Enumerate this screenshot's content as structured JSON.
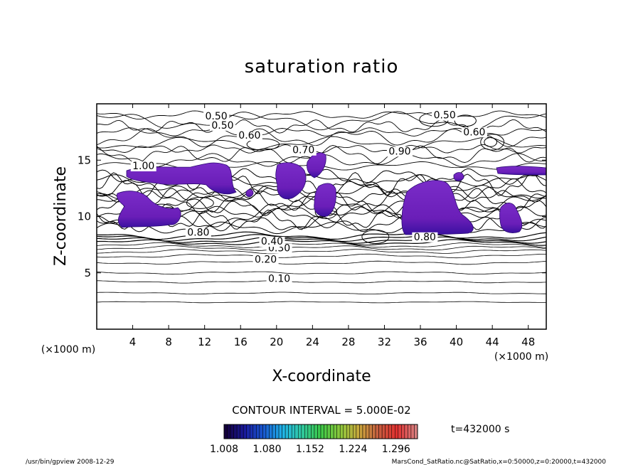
{
  "chart_data": {
    "type": "heatmap",
    "title": "saturation ratio",
    "xlabel": "X-coordinate",
    "ylabel": "Z-coordinate",
    "x_unit": "(×1000 m)",
    "y_unit": "(×1000 m)",
    "xlim": [
      0,
      50
    ],
    "ylim": [
      0,
      20
    ],
    "x_ticks": [
      4,
      8,
      12,
      16,
      20,
      24,
      28,
      32,
      36,
      40,
      44,
      48
    ],
    "y_ticks": [
      5,
      10,
      15
    ],
    "contour_interval_text": "CONTOUR INTERVAL = 5.000E-02",
    "contour_labels": [
      {
        "text": "0.10",
        "x": 20.3,
        "z": 4.2
      },
      {
        "text": "0.20",
        "x": 18.8,
        "z": 5.9
      },
      {
        "text": "0.30",
        "x": 20.3,
        "z": 6.9
      },
      {
        "text": "0.40",
        "x": 19.5,
        "z": 7.5
      },
      {
        "text": "0.50",
        "x": 13.3,
        "z": 18.6
      },
      {
        "text": "0.50",
        "x": 14.0,
        "z": 17.8
      },
      {
        "text": "0.50",
        "x": 38.7,
        "z": 18.7
      },
      {
        "text": "0.60",
        "x": 17.0,
        "z": 16.9
      },
      {
        "text": "0.60",
        "x": 42.0,
        "z": 17.2
      },
      {
        "text": "0.70",
        "x": 23.0,
        "z": 15.6
      },
      {
        "text": "0.80",
        "x": 11.3,
        "z": 8.3
      },
      {
        "text": "0.80",
        "x": 36.5,
        "z": 7.9
      },
      {
        "text": "0.90",
        "x": 33.7,
        "z": 15.5
      },
      {
        "text": "1.00",
        "x": 5.2,
        "z": 14.2
      }
    ],
    "shaded_regions_note": "saturation ratio > 1.008",
    "colorbar": {
      "tick_labels": [
        "1.008",
        "1.080",
        "1.152",
        "1.224",
        "1.296"
      ],
      "range": [
        1.008,
        1.332
      ],
      "colors": [
        "#14003c",
        "#1a1a9c",
        "#1858d0",
        "#20b4e8",
        "#30c8a0",
        "#3cc848",
        "#8ac83c",
        "#c8a83c",
        "#c86040",
        "#e03030",
        "#d88080"
      ]
    },
    "legend_text": "t=432000 s",
    "grid": false
  },
  "footer": {
    "left": "/usr/bin/gpview   2008-12-29",
    "right": "MarsCond_SatRatio.nc@SatRatio,x=0:50000,z=0:20000,t=432000"
  }
}
